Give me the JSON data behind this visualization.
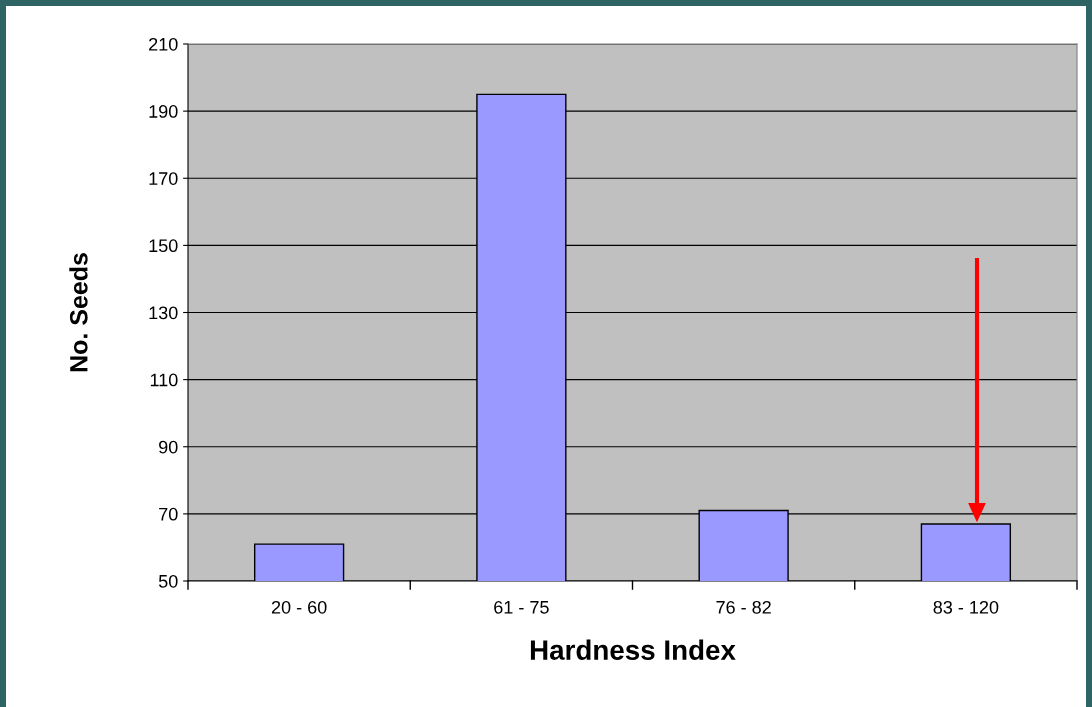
{
  "chart_data": {
    "type": "bar",
    "xlabel": "Hardness Index",
    "ylabel": "No. Seeds",
    "categories": [
      "20 - 60",
      "61 - 75",
      "76 - 82",
      "83 - 120"
    ],
    "values": [
      61,
      195,
      71,
      67
    ],
    "color": "#9999ff",
    "ylim": [
      50,
      210
    ],
    "yticks": [
      50,
      70,
      90,
      110,
      130,
      150,
      170,
      190,
      210
    ],
    "grid": "y"
  }
}
